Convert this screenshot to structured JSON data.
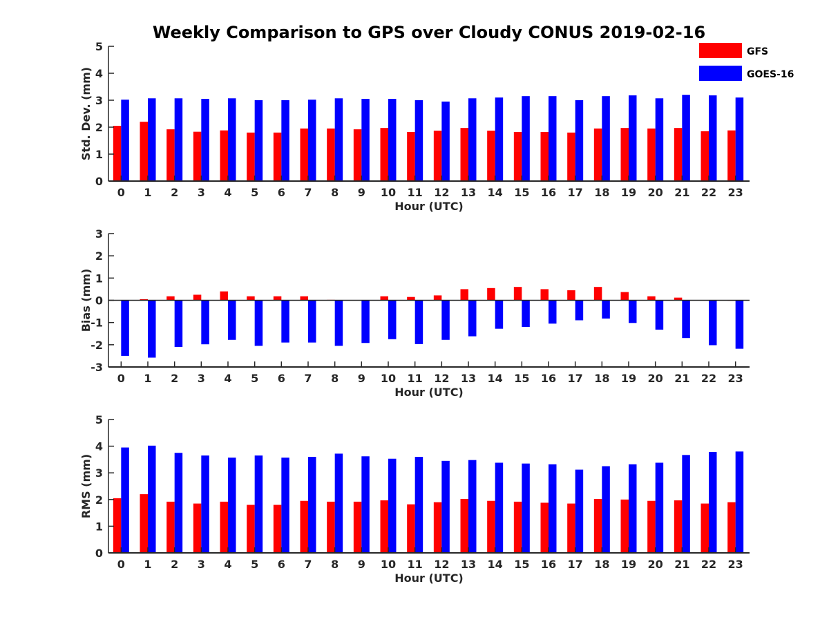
{
  "title": "Weekly Comparison to GPS over Cloudy CONUS 2019-02-16",
  "colors": {
    "GFS": "#ff0000",
    "GOES-16": "#0000ff",
    "axis": "#262626"
  },
  "legend": {
    "placement": "top-right",
    "entries": [
      "GFS",
      "GOES-16"
    ]
  },
  "chart_data": [
    {
      "type": "bar",
      "title": "Weekly Comparison to GPS over Cloudy CONUS 2019-02-16",
      "xlabel": "Hour (UTC)",
      "ylabel": "Std. Dev. (mm)",
      "ylim": [
        0,
        5
      ],
      "yticks": [
        0,
        1,
        2,
        3,
        4,
        5
      ],
      "categories": [
        "0",
        "1",
        "2",
        "3",
        "4",
        "5",
        "6",
        "7",
        "8",
        "9",
        "10",
        "11",
        "12",
        "13",
        "14",
        "15",
        "16",
        "17",
        "18",
        "19",
        "20",
        "21",
        "22",
        "23"
      ],
      "series": [
        {
          "name": "GFS",
          "values": [
            2.05,
            2.2,
            1.92,
            1.83,
            1.88,
            1.8,
            1.8,
            1.95,
            1.95,
            1.92,
            1.97,
            1.82,
            1.87,
            1.97,
            1.87,
            1.82,
            1.82,
            1.8,
            1.95,
            1.97,
            1.95,
            1.97,
            1.85,
            1.88
          ]
        },
        {
          "name": "GOES-16",
          "values": [
            3.02,
            3.07,
            3.07,
            3.05,
            3.07,
            3.0,
            3.0,
            3.02,
            3.07,
            3.05,
            3.05,
            3.0,
            2.95,
            3.07,
            3.1,
            3.15,
            3.15,
            3.0,
            3.15,
            3.18,
            3.07,
            3.2,
            3.18,
            3.1
          ]
        }
      ]
    },
    {
      "type": "bar",
      "xlabel": "Hour (UTC)",
      "ylabel": "Bias (mm)",
      "ylim": [
        -3,
        3
      ],
      "yticks": [
        -3,
        -2,
        -1,
        0,
        1,
        2,
        3
      ],
      "categories": [
        "0",
        "1",
        "2",
        "3",
        "4",
        "5",
        "6",
        "7",
        "8",
        "9",
        "10",
        "11",
        "12",
        "13",
        "14",
        "15",
        "16",
        "17",
        "18",
        "19",
        "20",
        "21",
        "22",
        "23"
      ],
      "series": [
        {
          "name": "GFS",
          "values": [
            0.0,
            0.05,
            0.18,
            0.25,
            0.4,
            0.18,
            0.18,
            0.18,
            0.02,
            0.0,
            0.18,
            0.15,
            0.22,
            0.5,
            0.55,
            0.6,
            0.5,
            0.45,
            0.6,
            0.37,
            0.18,
            0.12,
            0.0,
            -0.02
          ]
        },
        {
          "name": "GOES-16",
          "values": [
            -2.5,
            -2.58,
            -2.1,
            -1.98,
            -1.78,
            -2.05,
            -1.9,
            -1.9,
            -2.05,
            -1.92,
            -1.75,
            -1.97,
            -1.78,
            -1.62,
            -1.28,
            -1.2,
            -1.05,
            -0.9,
            -0.82,
            -1.02,
            -1.32,
            -1.7,
            -2.02,
            -2.18
          ]
        }
      ]
    },
    {
      "type": "bar",
      "xlabel": "Hour (UTC)",
      "ylabel": "RMS (mm)",
      "ylim": [
        0,
        5
      ],
      "yticks": [
        0,
        1,
        2,
        3,
        4,
        5
      ],
      "categories": [
        "0",
        "1",
        "2",
        "3",
        "4",
        "5",
        "6",
        "7",
        "8",
        "9",
        "10",
        "11",
        "12",
        "13",
        "14",
        "15",
        "16",
        "17",
        "18",
        "19",
        "20",
        "21",
        "22",
        "23"
      ],
      "series": [
        {
          "name": "GFS",
          "values": [
            2.05,
            2.2,
            1.92,
            1.85,
            1.92,
            1.8,
            1.8,
            1.95,
            1.92,
            1.92,
            1.97,
            1.82,
            1.9,
            2.02,
            1.95,
            1.92,
            1.88,
            1.85,
            2.02,
            2.0,
            1.95,
            1.97,
            1.85,
            1.9
          ]
        },
        {
          "name": "GOES-16",
          "values": [
            3.95,
            4.02,
            3.75,
            3.65,
            3.57,
            3.65,
            3.57,
            3.6,
            3.72,
            3.62,
            3.53,
            3.6,
            3.45,
            3.48,
            3.38,
            3.35,
            3.32,
            3.12,
            3.25,
            3.32,
            3.38,
            3.67,
            3.78,
            3.8
          ]
        }
      ]
    }
  ]
}
